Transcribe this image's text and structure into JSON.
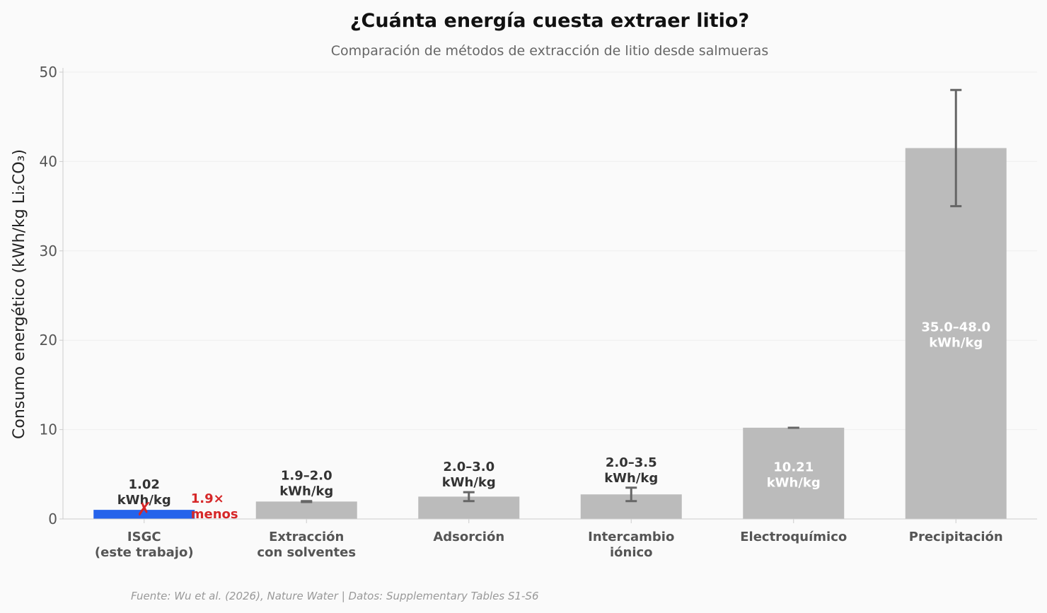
{
  "chart_data": {
    "type": "bar",
    "title": "¿Cuánta energía cuesta extraer litio?",
    "subtitle": "Comparación de métodos de extracción de litio desde salmueras",
    "ylabel": "Consumo energético (kWh/kg Li₂CO₃)",
    "xlabel": "",
    "ylim": [
      0,
      50
    ],
    "yticks": [
      0,
      10,
      20,
      30,
      40,
      50
    ],
    "grid": true,
    "categories": [
      [
        "ISGC",
        "(este trabajo)"
      ],
      [
        "Extracción",
        "con solventes"
      ],
      [
        "Adsorción"
      ],
      [
        "Intercambio",
        "iónico"
      ],
      [
        "Electroquímico"
      ],
      [
        "Precipitación"
      ]
    ],
    "values": [
      1.02,
      1.95,
      2.5,
      2.75,
      10.21,
      41.5
    ],
    "error_low": [
      null,
      1.9,
      2.0,
      2.0,
      10.21,
      35.0
    ],
    "error_high": [
      null,
      2.0,
      3.0,
      3.5,
      10.21,
      48.0
    ],
    "value_labels": [
      [
        "1.02",
        "kWh/kg"
      ],
      [
        "1.9–2.0",
        "kWh/kg"
      ],
      [
        "2.0–3.0",
        "kWh/kg"
      ],
      [
        "2.0–3.5",
        "kWh/kg"
      ],
      [
        "10.21",
        "kWh/kg"
      ],
      [
        "35.0–48.0",
        "kWh/kg"
      ]
    ],
    "label_inside": [
      false,
      false,
      false,
      false,
      true,
      true
    ],
    "highlight_index": 0,
    "annotation": {
      "marker": "✗",
      "lines": [
        "1.9×",
        "menos"
      ]
    },
    "colors": {
      "highlight": "#2563eb",
      "bar": "#bbbbbb",
      "error": "#666666",
      "annotation": "#d62728",
      "label_dark": "#333333",
      "label_light": "#ffffff",
      "tick_label": "#555555",
      "grid": "#eeeeee",
      "axis": "#cccccc"
    },
    "footer": "Fuente: Wu et al. (2026), Nature Water | Datos: Supplementary Tables S1-S6"
  }
}
